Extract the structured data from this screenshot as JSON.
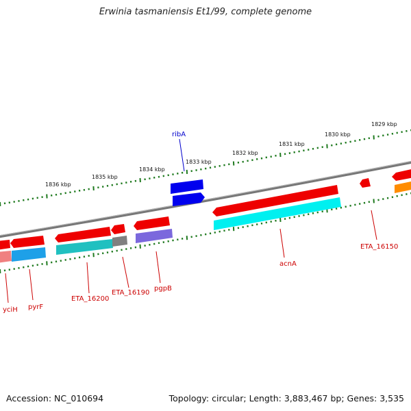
{
  "title": "Erwinia tasmaniensis Et1/99, complete genome",
  "accession": "Accession: NC_010694",
  "topology_info": "Topology: circular; Length: 3,883,467 bp; Genes: 3,535",
  "colors": {
    "backbone": "#808080",
    "tick": "#1f7a1f",
    "gene_forward": "#ff0000",
    "gene_label": "#cc0000",
    "rna_label": "#0000cc"
  },
  "kbp_labels": [
    "1836 kbp",
    "1835 kbp",
    "1834 kbp",
    "1833 kbp",
    "1832 kbp",
    "1831 kbp",
    "1830 kbp",
    "1829 kbp"
  ],
  "gene_labels": [
    "yciH",
    "pyrF",
    "ETA_16200",
    "ETA_16190",
    "pgpB",
    "acnA",
    "ETA_16150",
    "ribA"
  ]
}
